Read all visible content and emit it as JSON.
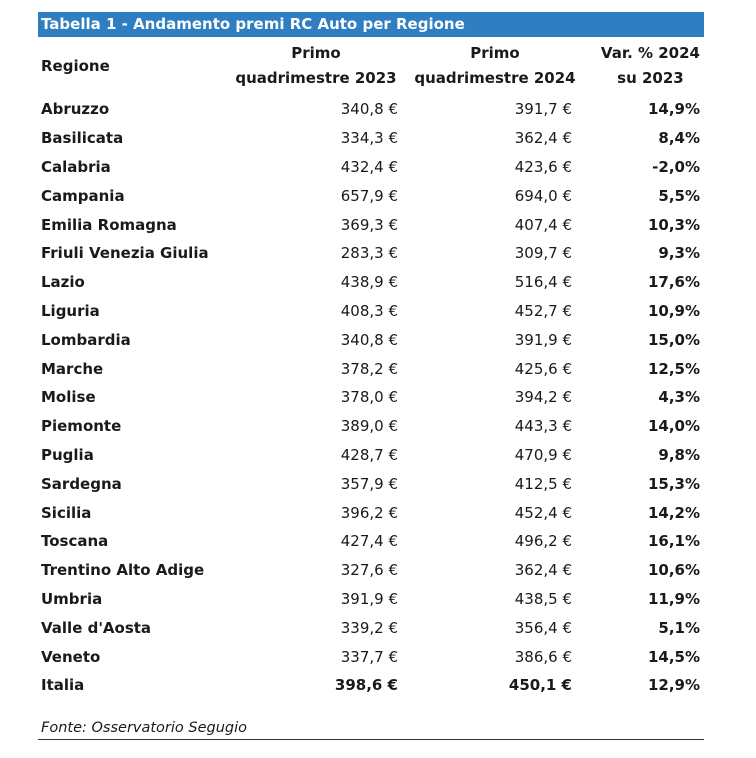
{
  "chart_data": {
    "type": "table",
    "title": "Tabella 1 - Andamento premi RC Auto per Regione",
    "columns": [
      {
        "key": "region",
        "label_lines": [
          "Regione"
        ]
      },
      {
        "key": "q2023",
        "label_lines": [
          "Primo",
          "quadrimestre 2023"
        ]
      },
      {
        "key": "q2024",
        "label_lines": [
          "Primo",
          "quadrimestre 2024"
        ]
      },
      {
        "key": "var",
        "label_lines": [
          "Var. % 2024",
          "su 2023"
        ]
      }
    ],
    "rows": [
      {
        "region": "Abruzzo",
        "q2023": "340,8 €",
        "q2024": "391,7 €",
        "var": "14,9%"
      },
      {
        "region": "Basilicata",
        "q2023": "334,3 €",
        "q2024": "362,4 €",
        "var": "8,4%"
      },
      {
        "region": "Calabria",
        "q2023": "432,4 €",
        "q2024": "423,6 €",
        "var": "-2,0%"
      },
      {
        "region": "Campania",
        "q2023": "657,9 €",
        "q2024": "694,0 €",
        "var": "5,5%"
      },
      {
        "region": "Emilia Romagna",
        "q2023": "369,3 €",
        "q2024": "407,4 €",
        "var": "10,3%"
      },
      {
        "region": "Friuli Venezia Giulia",
        "q2023": "283,3 €",
        "q2024": "309,7 €",
        "var": "9,3%"
      },
      {
        "region": "Lazio",
        "q2023": "438,9 €",
        "q2024": "516,4 €",
        "var": "17,6%"
      },
      {
        "region": "Liguria",
        "q2023": "408,3 €",
        "q2024": "452,7 €",
        "var": "10,9%"
      },
      {
        "region": "Lombardia",
        "q2023": "340,8 €",
        "q2024": "391,9 €",
        "var": "15,0%"
      },
      {
        "region": "Marche",
        "q2023": "378,2 €",
        "q2024": "425,6 €",
        "var": "12,5%"
      },
      {
        "region": "Molise",
        "q2023": "378,0 €",
        "q2024": "394,2 €",
        "var": "4,3%"
      },
      {
        "region": "Piemonte",
        "q2023": "389,0 €",
        "q2024": "443,3 €",
        "var": "14,0%"
      },
      {
        "region": "Puglia",
        "q2023": "428,7 €",
        "q2024": "470,9 €",
        "var": "9,8%"
      },
      {
        "region": "Sardegna",
        "q2023": "357,9 €",
        "q2024": "412,5 €",
        "var": "15,3%"
      },
      {
        "region": "Sicilia",
        "q2023": "396,2 €",
        "q2024": "452,4 €",
        "var": "14,2%"
      },
      {
        "region": "Toscana",
        "q2023": "427,4 €",
        "q2024": "496,2 €",
        "var": "16,1%"
      },
      {
        "region": "Trentino Alto Adige",
        "q2023": "327,6 €",
        "q2024": "362,4 €",
        "var": "10,6%"
      },
      {
        "region": "Umbria",
        "q2023": "391,9 €",
        "q2024": "438,5 €",
        "var": "11,9%"
      },
      {
        "region": "Valle d'Aosta",
        "q2023": "339,2 €",
        "q2024": "356,4 €",
        "var": "5,1%"
      },
      {
        "region": "Veneto",
        "q2023": "337,7 €",
        "q2024": "386,6 €",
        "var": "14,5%"
      }
    ],
    "total": {
      "region": "Italia",
      "q2023": "398,6 €",
      "q2024": "450,1 €",
      "var": "12,9%"
    },
    "source": "Fonte: Osservatorio Segugio"
  },
  "colors": {
    "title_bar": "#2f7ec1",
    "title_text": "#ffffff"
  }
}
